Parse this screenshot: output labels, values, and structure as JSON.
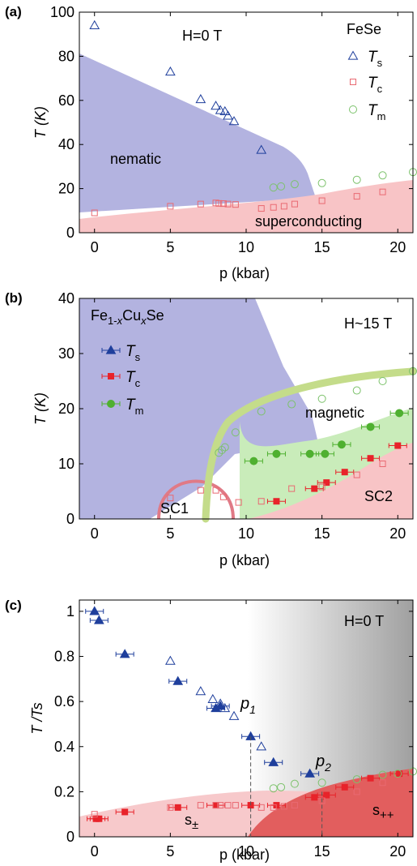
{
  "colors": {
    "nematic": "#b3b3e0",
    "superconducting": "#f8c4c6",
    "sc1_ring": "#e07a86",
    "magnetic_band": "#c4dc8a",
    "sc2_green": "#c9ecba",
    "ts": "#1f3f9c",
    "tc": "#e8232a",
    "tm": "#4fb030",
    "tc_open": "#e96a72",
    "tm_open": "#7cc26b",
    "s_pm": "#f7c9cb",
    "s_pp": "#e25e5e"
  },
  "chart_data": [
    {
      "type": "scatter",
      "panel_label": "(a)",
      "xlabel": "p (kbar)",
      "ylabel": "T (K)",
      "xlim": [
        -1,
        21
      ],
      "ylim": [
        0,
        100
      ],
      "x_ticks": [
        0,
        5,
        10,
        15,
        20
      ],
      "y_ticks": [
        0,
        20,
        40,
        60,
        80,
        100
      ],
      "grid": false,
      "field_label": "H=0 T",
      "material": "FeSe",
      "legend_position": "top-right",
      "region_labels": [
        "nematic",
        "superconducting"
      ],
      "series": [
        {
          "name": "Ts",
          "marker": "open-triangle",
          "points": [
            [
              0,
              94
            ],
            [
              5,
              73
            ],
            [
              7,
              60.5
            ],
            [
              8,
              57.5
            ],
            [
              8.3,
              55.5
            ],
            [
              8.6,
              55
            ],
            [
              8.8,
              53
            ],
            [
              9.2,
              50.5
            ],
            [
              11,
              37.5
            ]
          ]
        },
        {
          "name": "Tc",
          "marker": "open-square",
          "points": [
            [
              0,
              9
            ],
            [
              5,
              12
            ],
            [
              7,
              13
            ],
            [
              8,
              13.5
            ],
            [
              8.2,
              13.3
            ],
            [
              8.5,
              13.2
            ],
            [
              8.8,
              13
            ],
            [
              9.3,
              12.8
            ],
            [
              11,
              11
            ],
            [
              11.8,
              11.5
            ],
            [
              12.5,
              12
            ],
            [
              13.2,
              13
            ],
            [
              15,
              14.5
            ],
            [
              17.3,
              16.5
            ],
            [
              19,
              18.5
            ]
          ]
        },
        {
          "name": "Tm",
          "marker": "open-circle",
          "points": [
            [
              11.8,
              20.5
            ],
            [
              12.3,
              21
            ],
            [
              13.2,
              22
            ],
            [
              15,
              22.5
            ],
            [
              17.3,
              24
            ],
            [
              19,
              26
            ],
            [
              21,
              27.5
            ]
          ]
        }
      ]
    },
    {
      "type": "scatter",
      "panel_label": "(b)",
      "xlabel": "p (kbar)",
      "ylabel": "T (K)",
      "xlim": [
        -1,
        21
      ],
      "ylim": [
        0,
        40
      ],
      "x_ticks": [
        0,
        5,
        10,
        15,
        20
      ],
      "y_ticks": [
        0,
        10,
        20,
        30,
        40
      ],
      "grid": false,
      "field_label": "H~15 T",
      "material": "Fe1-xCuxSe",
      "legend_position": "top-left",
      "region_labels": [
        "magnetic",
        "SC1",
        "SC2"
      ],
      "series": [
        {
          "name": "Ts",
          "marker": "filled-triangle-errorbar",
          "points": []
        },
        {
          "name": "Tc",
          "marker": "filled-square-errorbar",
          "points": [
            [
              12,
              3.2
            ],
            [
              14.5,
              5.5
            ],
            [
              15.3,
              6.6
            ],
            [
              16.5,
              8.5
            ],
            [
              18.2,
              11
            ],
            [
              20,
              13.3
            ]
          ]
        },
        {
          "name": "Tm",
          "marker": "filled-circle-errorbar",
          "points": [
            [
              10.5,
              10.5
            ],
            [
              12,
              11.8
            ],
            [
              14.2,
              11.8
            ],
            [
              15.2,
              11.8
            ],
            [
              16.3,
              13.5
            ],
            [
              18.2,
              16.7
            ],
            [
              20.1,
              19.2
            ]
          ]
        },
        {
          "name": "Tc (FeSe)",
          "marker": "open-square",
          "points": [
            [
              5,
              3.8
            ],
            [
              7,
              5.2
            ],
            [
              8,
              5.2
            ],
            [
              8.5,
              4
            ],
            [
              9.5,
              3
            ],
            [
              11,
              3.2
            ],
            [
              13,
              5.5
            ],
            [
              15,
              5.8
            ],
            [
              17.3,
              8
            ],
            [
              19,
              10
            ]
          ]
        },
        {
          "name": "Tm (FeSe)",
          "marker": "open-circle",
          "points": [
            [
              8.2,
              12
            ],
            [
              8.4,
              12.5
            ],
            [
              8.6,
              13
            ],
            [
              9.3,
              15.7
            ],
            [
              11,
              19.5
            ],
            [
              13,
              20.8
            ],
            [
              15,
              21.8
            ],
            [
              17.3,
              23.3
            ],
            [
              19,
              25
            ],
            [
              21,
              26.8
            ]
          ]
        }
      ]
    },
    {
      "type": "scatter",
      "panel_label": "(c)",
      "xlabel": "p (kbar)",
      "ylabel": "T /Ts",
      "xlim": [
        -1,
        21
      ],
      "ylim": [
        0,
        1.05
      ],
      "x_ticks": [
        0,
        5,
        10,
        15,
        20
      ],
      "y_ticks": [
        0,
        0.2,
        0.4,
        0.6,
        0.8,
        1
      ],
      "grid": false,
      "field_label": "H=0 T",
      "legend_position": "none",
      "region_labels": [
        "s±",
        "s++"
      ],
      "annotations": [
        "p1",
        "p2"
      ],
      "p1_value": 10.3,
      "p2_value": 15,
      "series": [
        {
          "name": "Ts filled",
          "marker": "filled-triangle-errorbar",
          "points": [
            [
              0,
              1.0
            ],
            [
              0.3,
              0.96
            ],
            [
              2,
              0.81
            ],
            [
              5.5,
              0.69
            ],
            [
              8,
              0.57
            ],
            [
              8.3,
              0.58
            ],
            [
              10.3,
              0.445
            ],
            [
              11.8,
              0.33
            ],
            [
              14.2,
              0.28
            ]
          ]
        },
        {
          "name": "Ts open",
          "marker": "open-triangle",
          "points": [
            [
              5,
              0.78
            ],
            [
              7,
              0.645
            ],
            [
              7.8,
              0.61
            ],
            [
              8.3,
              0.59
            ],
            [
              8.6,
              0.57
            ],
            [
              9.2,
              0.535
            ],
            [
              11,
              0.4
            ]
          ]
        },
        {
          "name": "Tc filled",
          "marker": "filled-square-errorbar",
          "points": [
            [
              0.1,
              0.08
            ],
            [
              0.3,
              0.08
            ],
            [
              2,
              0.11
            ],
            [
              5.5,
              0.13
            ],
            [
              8,
              0.14
            ],
            [
              10.3,
              0.14
            ],
            [
              12,
              0.14
            ],
            [
              14.5,
              0.175
            ],
            [
              15.3,
              0.185
            ],
            [
              16.5,
              0.22
            ],
            [
              18.2,
              0.26
            ],
            [
              20.1,
              0.28
            ]
          ]
        },
        {
          "name": "Tc open",
          "marker": "open-square",
          "points": [
            [
              0,
              0.1
            ],
            [
              5,
              0.13
            ],
            [
              7,
              0.14
            ],
            [
              8,
              0.14
            ],
            [
              8.3,
              0.14
            ],
            [
              8.8,
              0.14
            ],
            [
              9.3,
              0.14
            ],
            [
              11,
              0.13
            ],
            [
              11.8,
              0.13
            ],
            [
              12.5,
              0.135
            ],
            [
              13.2,
              0.14
            ],
            [
              15,
              0.16
            ],
            [
              17.3,
              0.2
            ],
            [
              19,
              0.24
            ]
          ]
        },
        {
          "name": "Tm open",
          "marker": "open-circle",
          "points": [
            [
              11.8,
              0.215
            ],
            [
              12.3,
              0.22
            ],
            [
              13.2,
              0.235
            ],
            [
              15,
              0.24
            ],
            [
              17.3,
              0.255
            ],
            [
              19,
              0.275
            ],
            [
              20,
              0.28
            ],
            [
              21,
              0.29
            ]
          ]
        }
      ]
    }
  ]
}
